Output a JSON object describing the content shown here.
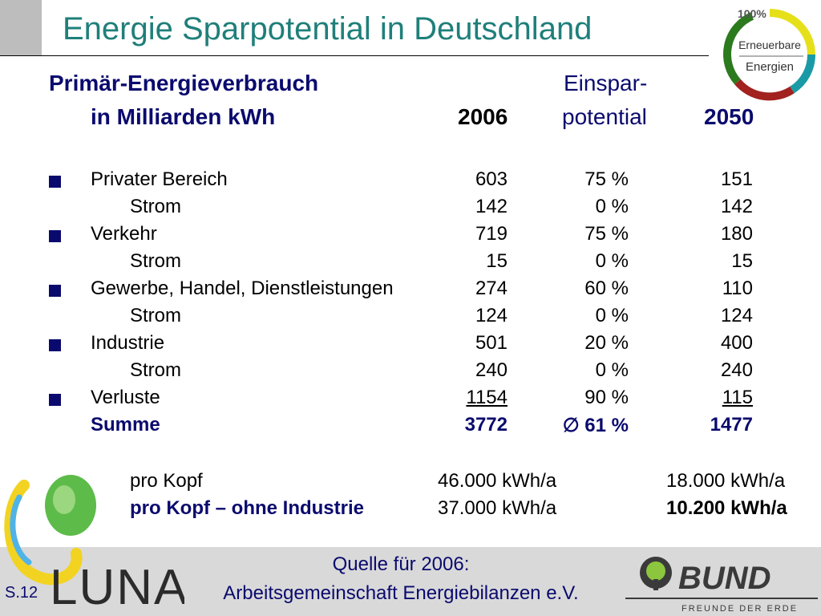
{
  "title": "Energie Sparpotential in Deutschland",
  "header": {
    "line1": "Primär-Energieverbrauch",
    "line2": "in Milliarden kWh",
    "year1": "2006",
    "pot1": "Einspar-",
    "pot2": "potential",
    "year2": "2050"
  },
  "rows": [
    {
      "label": "Privater Bereich",
      "v2006": "603",
      "pct": "75 %",
      "v2050": "151"
    },
    {
      "label": "Strom",
      "v2006": "142",
      "pct": "0 %",
      "v2050": "142"
    },
    {
      "label": "Verkehr",
      "v2006": "719",
      "pct": "75 %",
      "v2050": "180"
    },
    {
      "label": "Strom",
      "v2006": "15",
      "pct": "0 %",
      "v2050": "15"
    },
    {
      "label": "Gewerbe, Handel, Dienstleistungen",
      "v2006": "274",
      "pct": "60 %",
      "v2050": "110"
    },
    {
      "label": "Strom",
      "v2006": "124",
      "pct": "0 %",
      "v2050": "124"
    },
    {
      "label": "Industrie",
      "v2006": "501",
      "pct": "20 %",
      "v2050": "400"
    },
    {
      "label": "Strom",
      "v2006": "240",
      "pct": "0 %",
      "v2050": "240"
    },
    {
      "label": "Verluste",
      "v2006": "1154",
      "pct": "90 %",
      "v2050": "115"
    },
    {
      "label": "Summe",
      "v2006": "3772",
      "pct": "∅ 61 %",
      "v2050": "1477"
    }
  ],
  "per_capita": [
    {
      "label": "pro  Kopf",
      "v2006": "46.000 kWh/a",
      "v2050": "18.000 kWh/a"
    },
    {
      "label": "pro Kopf – ohne Industrie",
      "v2006": "37.000 kWh/a",
      "v2050": "10.200 kWh/a"
    }
  ],
  "source": {
    "line1": "Quelle für 2006:",
    "line2": "Arbeitsgemeinschaft Energiebilanzen e.V."
  },
  "slide_number": "S.12",
  "logos": {
    "ee_percent": "100%",
    "ee_line1": "Erneuerbare",
    "ee_line2": "Energien",
    "luna": "LUNA",
    "bund": "BUND",
    "bund_sub": "FREUNDE DER ERDE"
  },
  "colors": {
    "title": "#1f7f7a",
    "text_navy": "#0a0a6e",
    "footer_bg": "#d9d9d9"
  }
}
